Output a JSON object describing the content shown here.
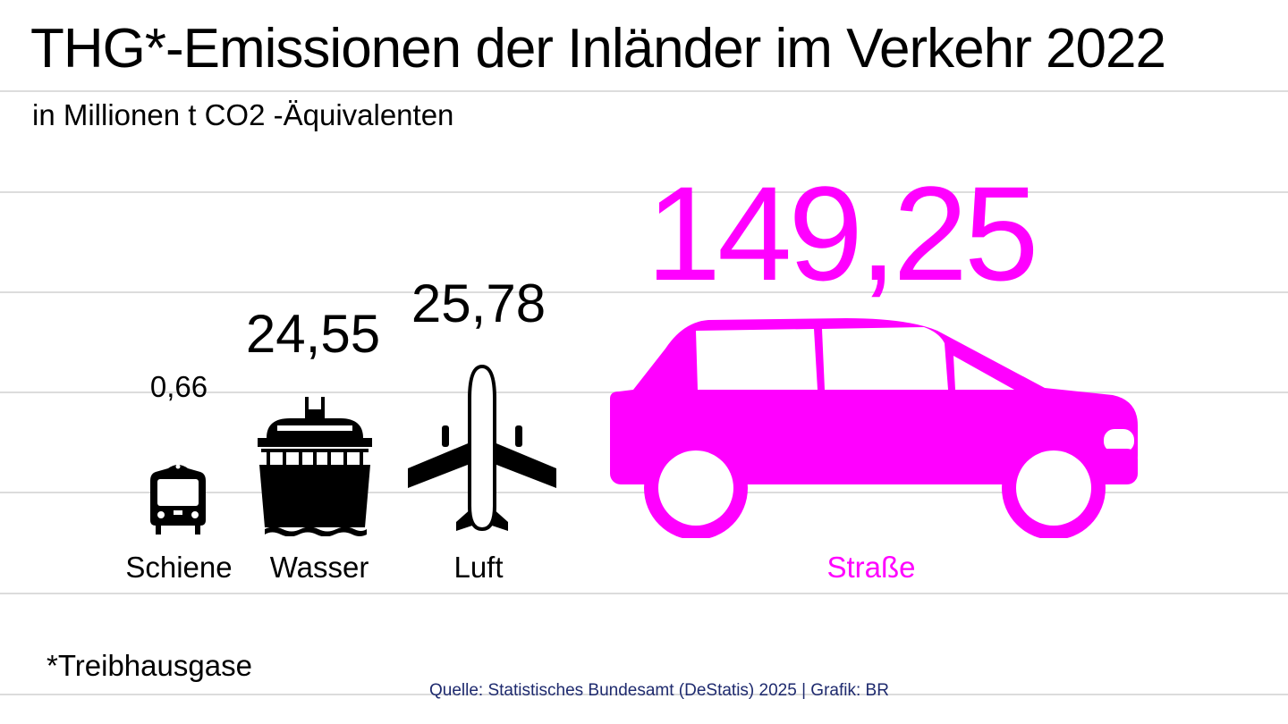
{
  "title": "THG*-Emissionen der Inländer im Verkehr 2022",
  "subtitle": "in Millionen t CO2 -Äquivalenten",
  "footnote": "*Treibhausgase",
  "source": "Quelle: Statistisches Bundesamt (DeStatis) 2025 | Grafik: BR",
  "colors": {
    "highlight": "#ff00ff",
    "default": "#000000",
    "grid": "#dcdcdc",
    "source": "#1e2a6e",
    "background": "#ffffff"
  },
  "chart_data": {
    "type": "bar",
    "title": "THG*-Emissionen der Inländer im Verkehr 2022",
    "subtitle": "in Millionen t CO2 -Äquivalenten",
    "unit": "Millionen t CO2 -Äquivalenten",
    "categories": [
      "Schiene",
      "Wasser",
      "Luft",
      "Straße"
    ],
    "values": [
      0.66,
      24.55,
      25.78,
      149.25
    ],
    "value_labels": [
      "0,66",
      "24,55",
      "25,78",
      "149,25"
    ],
    "icons": [
      "train-icon",
      "ship-icon",
      "airplane-icon",
      "car-icon"
    ],
    "highlight_category": "Straße",
    "grid": true
  }
}
